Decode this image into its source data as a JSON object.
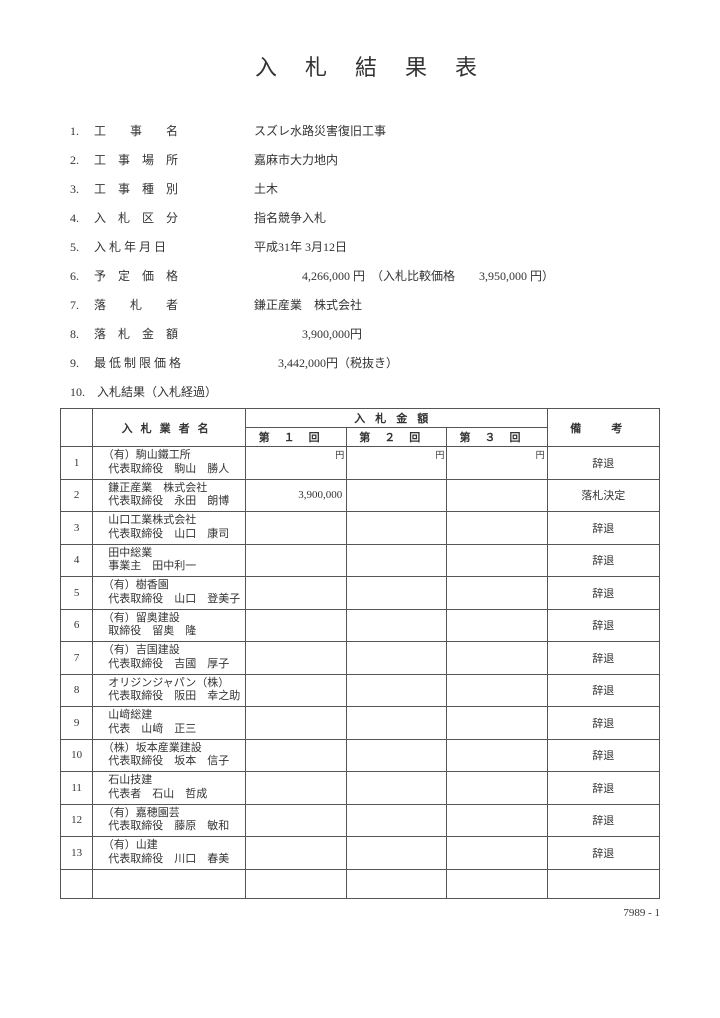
{
  "title": "入札結果表",
  "info": [
    {
      "num": "1.",
      "label": "工　　事　　名",
      "value": "スズレ水路災害復旧工事"
    },
    {
      "num": "2.",
      "label": "工　事　場　所",
      "value": "嘉麻市大力地内"
    },
    {
      "num": "3.",
      "label": "工　事　種　別",
      "value": "土木"
    },
    {
      "num": "4.",
      "label": "入　札　区　分",
      "value": "指名競争入札"
    },
    {
      "num": "5.",
      "label": "入 札 年 月 日",
      "value": "平成31年 3月12日"
    },
    {
      "num": "6.",
      "label": "予　定　価　格",
      "value": "　　　　4,266,000 円　（入札比較価格　　3,950,000 円）"
    },
    {
      "num": "7.",
      "label": "落　　札　　者",
      "value": "鎌正産業　株式会社"
    },
    {
      "num": "8.",
      "label": "落　札　金　額",
      "value": "　　　　3,900,000円"
    },
    {
      "num": "9.",
      "label": "最 低 制 限 価 格",
      "value": "　　3,442,000円（税抜き）"
    }
  ],
  "section10": "10.　入札結果（入札経過）",
  "headers": {
    "bidder": "入札業者名",
    "amount": "入札金額",
    "round1": "第１回",
    "round2": "第２回",
    "round3": "第３回",
    "remarks": "備考",
    "yen": "円"
  },
  "rows": [
    {
      "no": "1",
      "l1": "（有）駒山鐵工所",
      "l2": "代表取締役　駒山　勝人",
      "a1": "",
      "rem": "辞退"
    },
    {
      "no": "2",
      "l1": "鎌正産業　株式会社",
      "l2": "代表取締役　永田　朗博",
      "a1": "3,900,000",
      "rem": "落札決定"
    },
    {
      "no": "3",
      "l1": "山口工業株式会社",
      "l2": "代表取締役　山口　康司",
      "a1": "",
      "rem": "辞退"
    },
    {
      "no": "4",
      "l1": "田中総業",
      "l2": "事業主　田中利一",
      "a1": "",
      "rem": "辞退"
    },
    {
      "no": "5",
      "l1": "（有）樹香園",
      "l2": "代表取締役　山口　登美子",
      "a1": "",
      "rem": "辞退"
    },
    {
      "no": "6",
      "l1": "（有）留奥建設",
      "l2": "取締役　留奥　隆",
      "a1": "",
      "rem": "辞退"
    },
    {
      "no": "7",
      "l1": "（有）吉国建設",
      "l2": "代表取締役　吉國　厚子",
      "a1": "",
      "rem": "辞退"
    },
    {
      "no": "8",
      "l1": "オリジンジャパン（株）",
      "l2": "代表取締役　阪田　幸之助",
      "a1": "",
      "rem": "辞退"
    },
    {
      "no": "9",
      "l1": "山﨑総建",
      "l2": "代表　山﨑　正三",
      "a1": "",
      "rem": "辞退"
    },
    {
      "no": "10",
      "l1": "（株）坂本産業建設",
      "l2": "代表取締役　坂本　信子",
      "a1": "",
      "rem": "辞退"
    },
    {
      "no": "11",
      "l1": "石山技建",
      "l2": "代表者　石山　哲成",
      "a1": "",
      "rem": "辞退"
    },
    {
      "no": "12",
      "l1": "（有）嘉穂園芸",
      "l2": "代表取締役　藤原　敏和",
      "a1": "",
      "rem": "辞退"
    },
    {
      "no": "13",
      "l1": "（有）山建",
      "l2": "代表取締役　川口　春美",
      "a1": "",
      "rem": "辞退"
    }
  ],
  "footer": "7989 - 1"
}
